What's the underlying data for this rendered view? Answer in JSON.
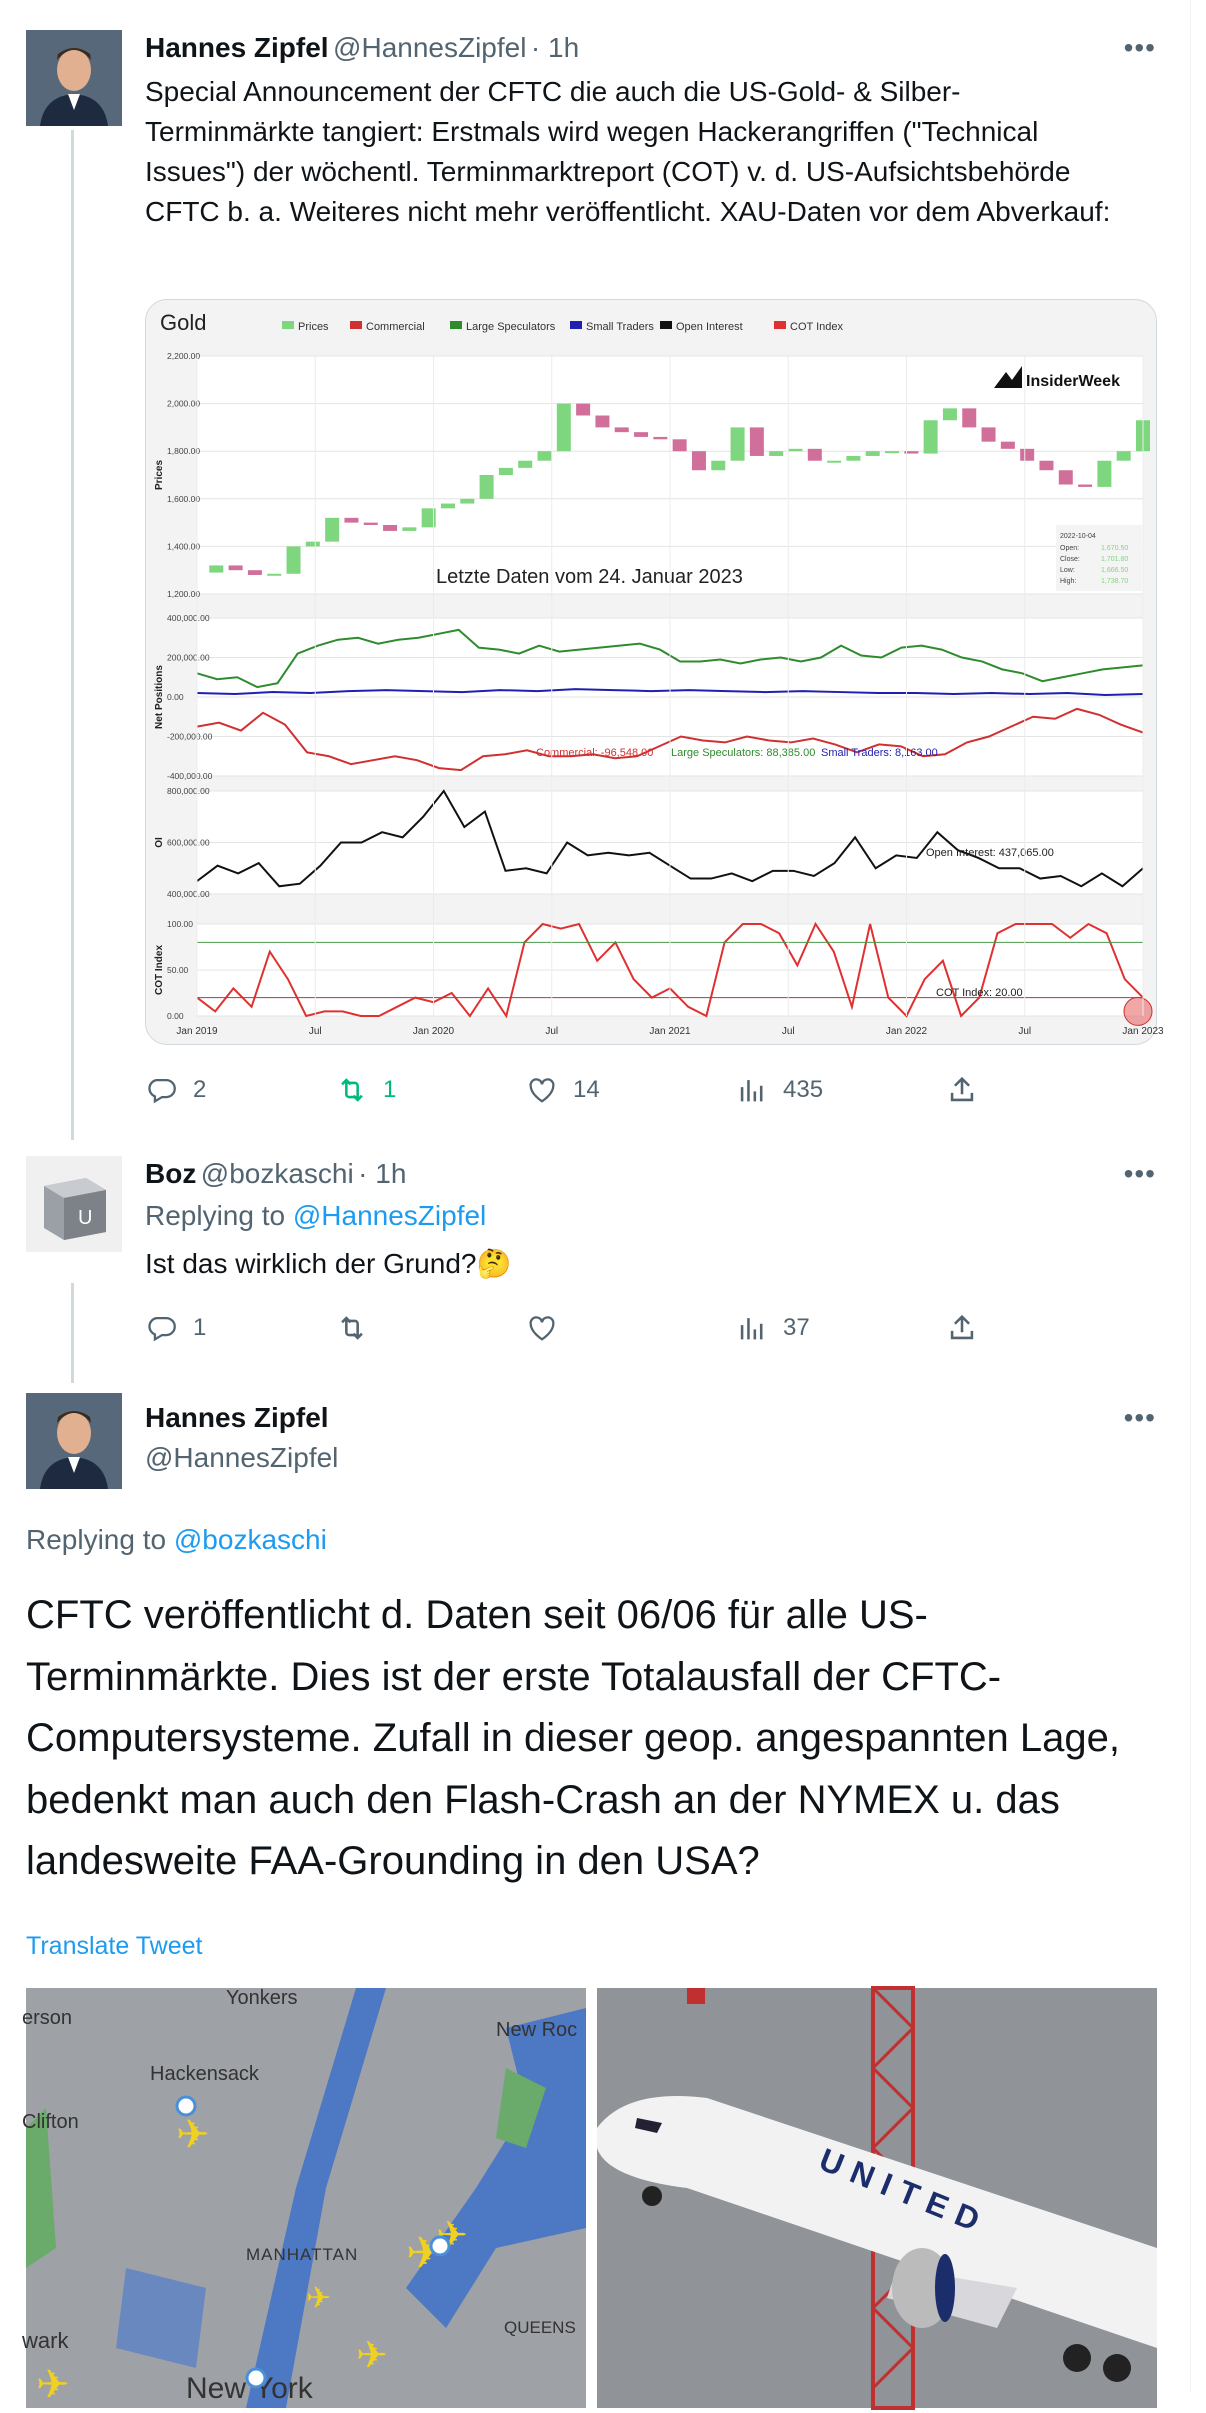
{
  "tweets": [
    {
      "name": "Hannes Zipfel",
      "handle": "@HannesZipfel",
      "time": "· 1h",
      "more": "•••",
      "text": "Special Announcement der CFTC die auch die US-Gold- & Silber-Terminmärkte tangiert: Erstmals wird wegen Hackerangriffen (\"Technical Issues\") der wöchentl. Terminmarktreport (COT) v. d. US-Aufsichtsbehörde CFTC b. a. Weiteres nicht mehr veröffentlicht. XAU-Daten vor dem Abverkauf:",
      "stats": {
        "replies": "2",
        "retweets": "1",
        "likes": "14",
        "views": "435"
      }
    },
    {
      "name": "Boz",
      "handle": "@bozkaschi",
      "time": "· 1h",
      "more": "•••",
      "replying_prefix": "Replying to ",
      "replying_to": "@HannesZipfel",
      "text": "Ist das wirklich der Grund?🤔",
      "avatar_letter": "U",
      "stats": {
        "replies": "1",
        "retweets": "",
        "likes": "",
        "views": "37"
      }
    },
    {
      "name": "Hannes Zipfel",
      "handle": "@HannesZipfel",
      "more": "•••",
      "replying_prefix": "Replying to ",
      "replying_to": "@bozkaschi",
      "text": "CFTC veröffentlicht d. Daten seit 06/06 für alle US-Terminmärkte. Dies ist der erste Totalausfall der CFTC-Computersysteme. Zufall in dieser geop. angespannten Lage, bedenkt man auch den Flash-Crash an der NYMEX u. das landesweite FAA-Grounding in den USA?",
      "translate": "Translate Tweet"
    }
  ],
  "chart_data": {
    "type": "line",
    "title": "Gold",
    "legend": [
      "Prices",
      "Commercial",
      "Large Speculators",
      "Small Traders",
      "Open Interest",
      "COT Index"
    ],
    "legend_placement": "top",
    "watermark": "InsiderWeek",
    "annotation": "Letzte Daten vom 24. Januar 2023",
    "x_ticks": [
      "Jan 2019",
      "Jul",
      "Jan 2020",
      "Jul",
      "Jan 2021",
      "Jul",
      "Jan 2022",
      "Jul",
      "Jan 2023"
    ],
    "xlim": [
      "2019-01",
      "2023-01"
    ],
    "colors": {
      "prices_up": "#7ed67e",
      "prices_down": "#d0709a",
      "commercial": "#d03030",
      "large_speculators": "#2e8b2e",
      "small_traders": "#2020b0",
      "open_interest": "#111111",
      "cot_index": "#e03030"
    },
    "panels": [
      {
        "ylabel": "Prices",
        "ylim": [
          1200,
          2200
        ],
        "y_ticks": [
          "2,200.00",
          "2,000.00",
          "1,800.00",
          "1,600.00",
          "1,400.00",
          "1,200.00"
        ],
        "ohlc_box": {
          "date": "2022-10-04",
          "labels": [
            "Open:",
            "Close:",
            "Low:",
            "High:"
          ],
          "values": [
            "1,670.50",
            "1,701.80",
            "1,666.50",
            "1,738.70"
          ]
        },
        "series": [
          {
            "name": "Prices",
            "values": [
              1290,
              1320,
              1300,
              1280,
              1285,
              1400,
              1420,
              1520,
              1500,
              1490,
              1465,
              1480,
              1560,
              1580,
              1600,
              1700,
              1730,
              1760,
              1800,
              2000,
              1950,
              1900,
              1880,
              1860,
              1850,
              1800,
              1720,
              1760,
              1900,
              1780,
              1800,
              1810,
              1760,
              1760,
              1780,
              1800,
              1800,
              1790,
              1930,
              1980,
              1900,
              1840,
              1810,
              1760,
              1720,
              1660,
              1650,
              1760,
              1800,
              1930
            ]
          }
        ]
      },
      {
        "ylabel": "Net Positions",
        "ylim": [
          -400000,
          400000
        ],
        "y_ticks": [
          "400,000.00",
          "200,000.00",
          "0.00",
          "-200,000.00",
          "-400,000.00"
        ],
        "readout": [
          "Commercial: -96,548.00",
          "Large Speculators: 88,385.00",
          "Small Traders: 8,163.00"
        ],
        "series": [
          {
            "name": "Large Speculators",
            "values": [
              120000,
              90000,
              100000,
              50000,
              70000,
              220000,
              260000,
              290000,
              300000,
              270000,
              290000,
              300000,
              320000,
              340000,
              250000,
              240000,
              220000,
              260000,
              230000,
              240000,
              250000,
              260000,
              270000,
              240000,
              180000,
              180000,
              190000,
              170000,
              190000,
              200000,
              180000,
              200000,
              260000,
              210000,
              200000,
              250000,
              260000,
              240000,
              200000,
              180000,
              140000,
              120000,
              80000,
              100000,
              120000,
              140000,
              150000,
              160000
            ]
          },
          {
            "name": "Commercial",
            "values": [
              -150000,
              -130000,
              -170000,
              -80000,
              -140000,
              -280000,
              -300000,
              -340000,
              -320000,
              -300000,
              -320000,
              -360000,
              -370000,
              -300000,
              -290000,
              -270000,
              -300000,
              -300000,
              -290000,
              -310000,
              -300000,
              -250000,
              -200000,
              -220000,
              -230000,
              -200000,
              -220000,
              -230000,
              -210000,
              -240000,
              -280000,
              -240000,
              -250000,
              -300000,
              -290000,
              -230000,
              -200000,
              -150000,
              -100000,
              -110000,
              -60000,
              -90000,
              -140000,
              -180000
            ]
          },
          {
            "name": "Small Traders",
            "values": [
              20000,
              15000,
              25000,
              20000,
              30000,
              35000,
              30000,
              25000,
              35000,
              30000,
              40000,
              35000,
              30000,
              35000,
              30000,
              25000,
              30000,
              25000,
              20000,
              20000,
              15000,
              20000,
              15000,
              20000,
              10000,
              15000
            ]
          }
        ]
      },
      {
        "ylabel": "OI",
        "ylim": [
          400000,
          800000
        ],
        "y_ticks": [
          "800,000.00",
          "600,000.00",
          "400,000.00"
        ],
        "readout": [
          "Open Interest: 437,065.00"
        ],
        "series": [
          {
            "name": "Open Interest",
            "values": [
              450000,
              510000,
              480000,
              520000,
              430000,
              440000,
              510000,
              600000,
              600000,
              640000,
              620000,
              700000,
              800000,
              660000,
              720000,
              490000,
              500000,
              480000,
              600000,
              550000,
              560000,
              550000,
              560000,
              510000,
              460000,
              460000,
              480000,
              450000,
              490000,
              490000,
              470000,
              520000,
              620000,
              500000,
              550000,
              540000,
              640000,
              570000,
              540000,
              500000,
              500000,
              460000,
              470000,
              430000,
              480000,
              430000,
              500000
            ]
          }
        ]
      },
      {
        "ylabel": "COT Index",
        "ylim": [
          0,
          100
        ],
        "y_ticks": [
          "100.00",
          "50.00",
          "0.00"
        ],
        "readout": [
          "COT Index: 20.00"
        ],
        "series": [
          {
            "name": "COT Index",
            "values": [
              20,
              5,
              30,
              10,
              70,
              40,
              0,
              5,
              5,
              0,
              0,
              10,
              20,
              15,
              25,
              0,
              30,
              0,
              80,
              100,
              95,
              100,
              60,
              80,
              40,
              20,
              30,
              10,
              0,
              80,
              100,
              100,
              90,
              55,
              100,
              70,
              10,
              100,
              20,
              0,
              40,
              60,
              0,
              20,
              90,
              100,
              100,
              100,
              85,
              100,
              90,
              40,
              20
            ]
          }
        ]
      }
    ]
  },
  "map_labels": [
    "Yonkers",
    "erson",
    "New Roc",
    "Hackensack",
    "Clifton",
    "MANHATTAN",
    "wark",
    "New York",
    "QUEENS"
  ],
  "plane_livery": "UNITED"
}
